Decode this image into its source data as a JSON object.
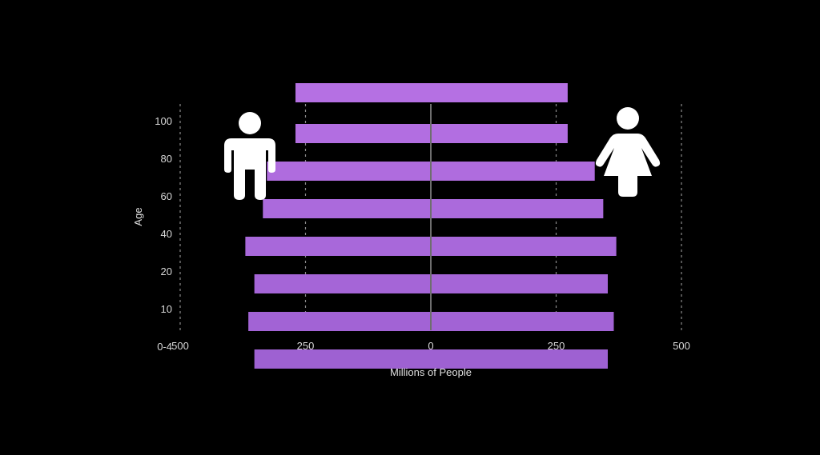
{
  "chart_data": {
    "type": "bar",
    "orientation": "horizontal",
    "subtype": "population-pyramid",
    "categories": [
      "0-4",
      "10",
      "20",
      "40",
      "60",
      "80",
      "100"
    ],
    "series": [
      {
        "values": [
          -352,
          -364,
          -352,
          -370,
          -335,
          -327,
          -270
        ],
        "color": "#9b5fd0"
      },
      {
        "values": [
          353,
          365,
          353,
          370,
          344,
          327,
          273
        ],
        "color": "#b570e3"
      }
    ],
    "top_bar": {
      "male": -270,
      "female": 273
    },
    "xlabel": "Millions of People",
    "ylabel": "Age",
    "xlim": [
      -500,
      500
    ],
    "xticks": [
      -500,
      -250,
      0,
      250,
      500
    ],
    "xtick_labels": [
      "500",
      "250",
      "0",
      "250",
      "500"
    ],
    "grid": true,
    "legend": "icons",
    "icons": {
      "male": "male-person-icon",
      "female": "female-person-icon"
    },
    "bar_color_top": "#b570e3",
    "bar_color_bottom": "#9b5fd0",
    "background": "#000000"
  }
}
